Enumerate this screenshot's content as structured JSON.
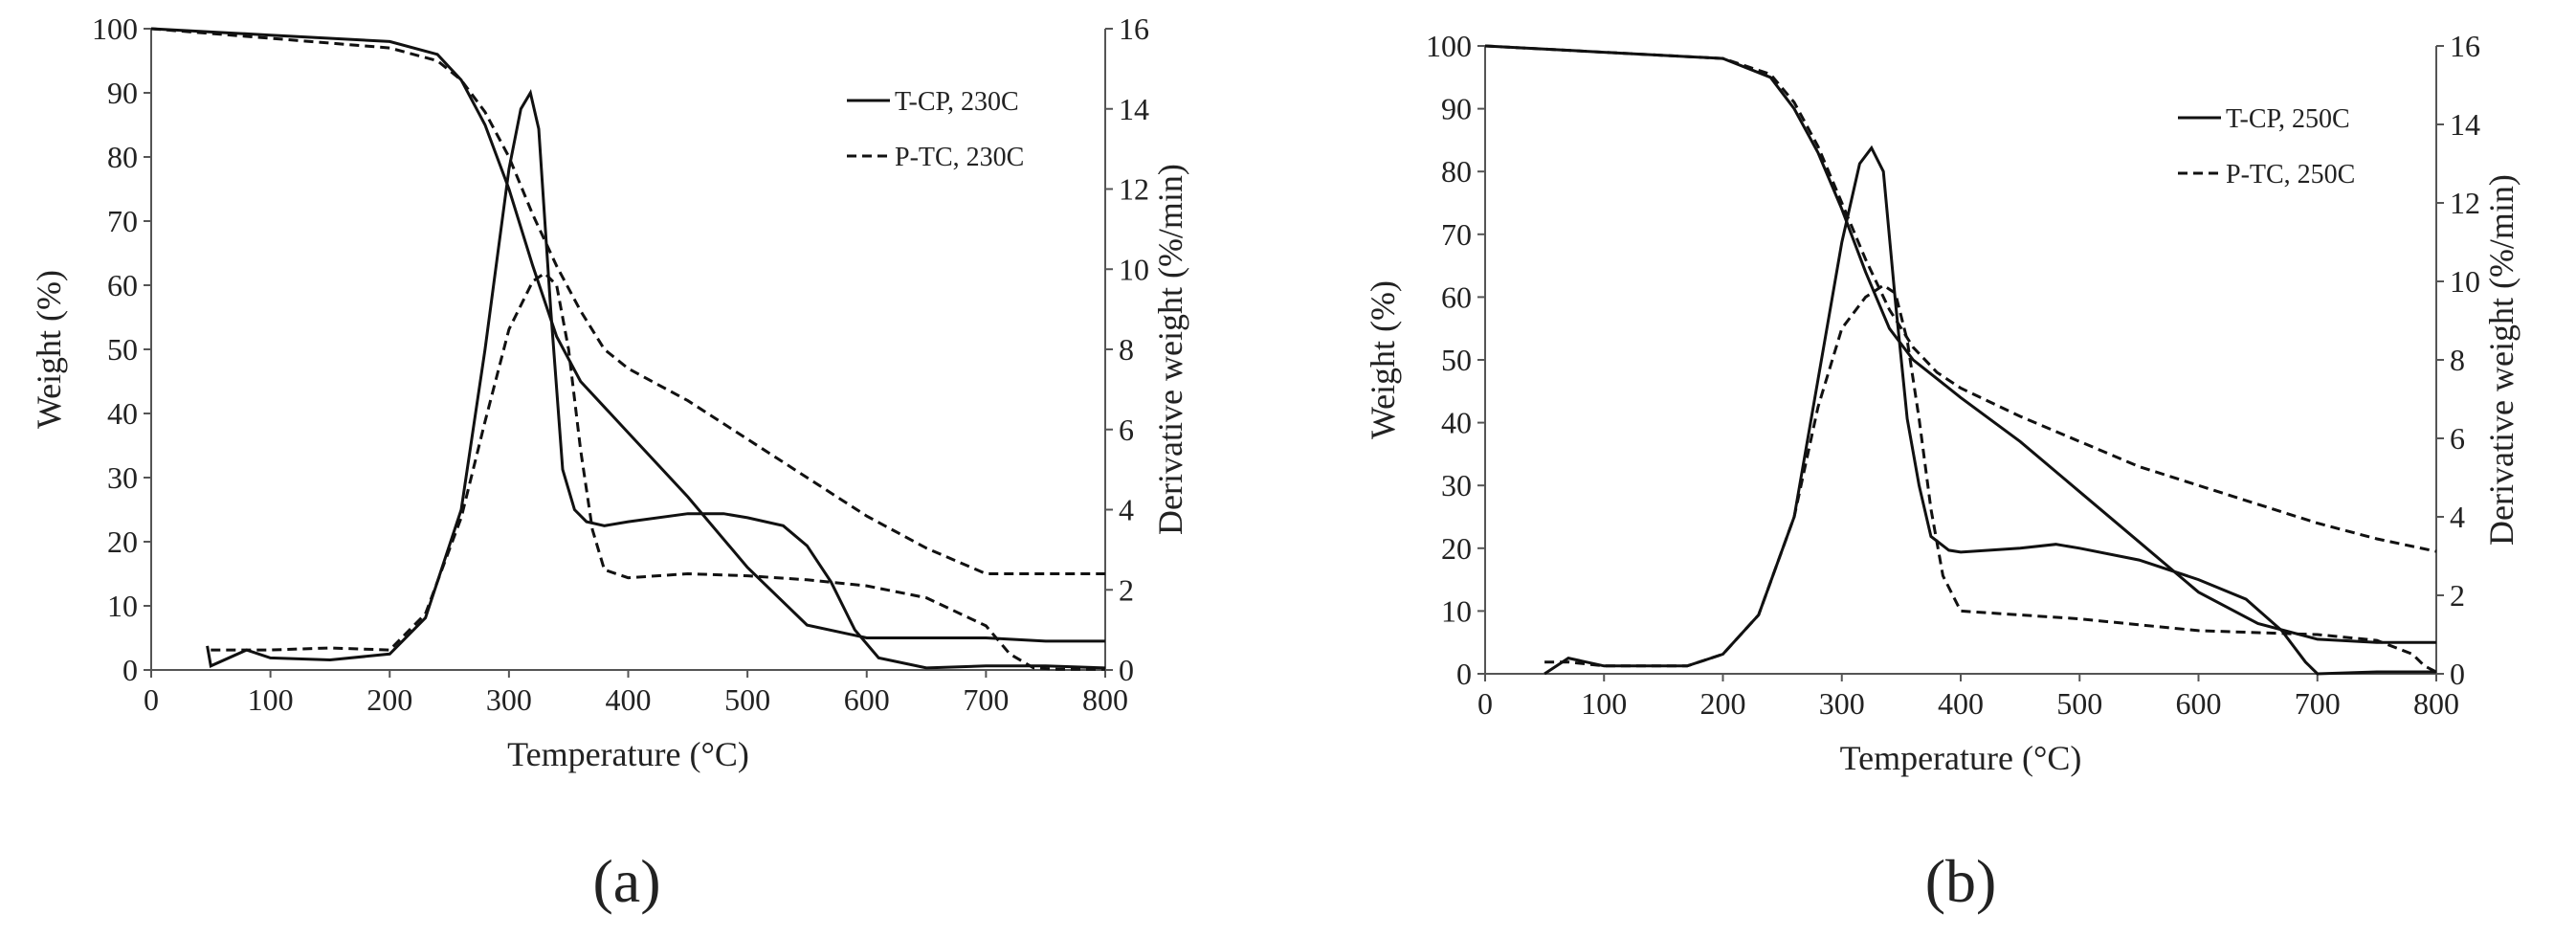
{
  "chart_data": [
    {
      "type": "line",
      "panel_label": "(a)",
      "xlabel": "Temperature (°C)",
      "ylabel": "Weight (%)",
      "y2label": "Derivative weight (%/min)",
      "xlim": [
        0,
        800
      ],
      "ylim": [
        0,
        100
      ],
      "y2lim": [
        0,
        16
      ],
      "xticks": [
        0,
        100,
        200,
        300,
        400,
        500,
        600,
        700,
        800
      ],
      "yticks": [
        0,
        10,
        20,
        30,
        40,
        50,
        60,
        70,
        80,
        90,
        100
      ],
      "y2ticks": [
        0,
        2,
        4,
        6,
        8,
        10,
        12,
        14,
        16
      ],
      "legend_position": "top-right",
      "legend": [
        "T-CP, 230C",
        "P-TC, 230C"
      ],
      "series": [
        {
          "name": "T-CP, 230C",
          "kind": "weight",
          "axis": "left",
          "style": "solid",
          "x": [
            0,
            100,
            200,
            240,
            260,
            280,
            300,
            320,
            340,
            360,
            380,
            400,
            450,
            500,
            550,
            600,
            650,
            700,
            750,
            800
          ],
          "y": [
            100,
            99,
            98,
            96,
            92,
            85,
            75,
            63,
            52,
            45,
            41,
            37,
            27,
            16,
            7,
            5,
            5,
            5,
            4.5,
            4.5
          ]
        },
        {
          "name": "P-TC, 230C",
          "kind": "weight",
          "axis": "left",
          "style": "dashed",
          "x": [
            0,
            100,
            200,
            240,
            260,
            280,
            300,
            320,
            340,
            360,
            380,
            400,
            450,
            500,
            550,
            600,
            650,
            700,
            750,
            800
          ],
          "y": [
            100,
            98.5,
            97,
            95,
            92,
            87,
            80,
            71,
            63,
            56,
            50,
            47,
            42,
            36,
            30,
            24,
            19,
            15,
            15,
            15
          ]
        },
        {
          "name": "T-CP, 230C",
          "kind": "derivative",
          "axis": "right",
          "style": "solid",
          "x": [
            47,
            50,
            80,
            100,
            150,
            200,
            230,
            260,
            280,
            300,
            310,
            318,
            325,
            335,
            345,
            355,
            365,
            380,
            400,
            450,
            480,
            500,
            530,
            550,
            570,
            590,
            610,
            650,
            700,
            750,
            800
          ],
          "y": [
            0.6,
            0.1,
            0.5,
            0.3,
            0.25,
            0.4,
            1.3,
            4,
            8,
            12.5,
            14,
            14.4,
            13.5,
            9,
            5,
            4,
            3.7,
            3.6,
            3.7,
            3.9,
            3.9,
            3.8,
            3.6,
            3.1,
            2.2,
            1.0,
            0.3,
            0.05,
            0.1,
            0.1,
            0.05
          ]
        },
        {
          "name": "P-TC, 230C",
          "kind": "derivative",
          "axis": "right",
          "style": "dashed",
          "x": [
            50,
            100,
            150,
            200,
            230,
            260,
            280,
            300,
            320,
            330,
            340,
            350,
            360,
            370,
            380,
            400,
            450,
            500,
            550,
            600,
            650,
            700,
            720,
            740,
            760,
            800
          ],
          "y": [
            0.5,
            0.5,
            0.55,
            0.5,
            1.4,
            3.8,
            6.2,
            8.5,
            9.7,
            9.9,
            9.6,
            8,
            5.5,
            3.5,
            2.5,
            2.3,
            2.4,
            2.35,
            2.25,
            2.1,
            1.8,
            1.1,
            0.4,
            0.05,
            0.02,
            0.02
          ]
        }
      ]
    },
    {
      "type": "line",
      "panel_label": "(b)",
      "xlabel": "Temperature (°C)",
      "ylabel": "Weight (%)",
      "y2label": "Derivative weight (%/min)",
      "xlim": [
        0,
        800
      ],
      "ylim": [
        0,
        100
      ],
      "y2lim": [
        0,
        16
      ],
      "xticks": [
        0,
        100,
        200,
        300,
        400,
        500,
        600,
        700,
        800
      ],
      "yticks": [
        0,
        10,
        20,
        30,
        40,
        50,
        60,
        70,
        80,
        90,
        100
      ],
      "y2ticks": [
        0,
        2,
        4,
        6,
        8,
        10,
        12,
        14,
        16
      ],
      "legend_position": "top-right",
      "legend": [
        "T-CP, 250C",
        "P-TC, 250C"
      ],
      "series": [
        {
          "name": "T-CP, 250C",
          "kind": "weight",
          "axis": "left",
          "style": "solid",
          "x": [
            0,
            100,
            200,
            240,
            260,
            280,
            300,
            320,
            340,
            360,
            380,
            400,
            450,
            500,
            550,
            600,
            650,
            700,
            750,
            800
          ],
          "y": [
            100,
            99,
            98,
            95,
            90,
            83,
            74,
            64,
            55,
            50,
            47,
            44,
            37,
            29,
            21,
            13,
            8,
            5.5,
            5,
            5
          ]
        },
        {
          "name": "P-TC, 250C",
          "kind": "weight",
          "axis": "left",
          "style": "dashed",
          "x": [
            0,
            100,
            200,
            240,
            260,
            280,
            300,
            320,
            340,
            360,
            380,
            400,
            450,
            500,
            550,
            600,
            650,
            700,
            750,
            800
          ],
          "y": [
            100,
            99,
            98,
            95.5,
            91,
            84,
            75,
            66,
            58,
            52,
            48,
            45.5,
            41,
            37,
            33,
            30,
            27,
            24,
            21.5,
            19.5
          ]
        },
        {
          "name": "T-CP, 250C",
          "kind": "derivative",
          "axis": "right",
          "style": "solid",
          "x": [
            50,
            70,
            100,
            170,
            200,
            230,
            260,
            280,
            300,
            315,
            325,
            335,
            345,
            355,
            365,
            375,
            390,
            400,
            450,
            480,
            500,
            550,
            600,
            640,
            670,
            690,
            700,
            750,
            800
          ],
          "y": [
            0,
            0.4,
            0.2,
            0.2,
            0.5,
            1.5,
            4,
            7.5,
            11,
            13,
            13.4,
            12.8,
            9.5,
            6.5,
            4.8,
            3.5,
            3.15,
            3.1,
            3.2,
            3.3,
            3.2,
            2.9,
            2.4,
            1.9,
            1.1,
            0.3,
            0,
            0.05,
            0.05
          ]
        },
        {
          "name": "P-TC, 250C",
          "kind": "derivative",
          "axis": "right",
          "style": "dashed",
          "x": [
            50,
            70,
            100,
            170,
            200,
            230,
            260,
            280,
            300,
            320,
            335,
            345,
            355,
            365,
            375,
            385,
            400,
            450,
            500,
            550,
            600,
            650,
            700,
            750,
            780,
            790,
            800
          ],
          "y": [
            0.3,
            0.3,
            0.2,
            0.2,
            0.5,
            1.5,
            4,
            6.8,
            8.8,
            9.6,
            9.9,
            9.7,
            8.5,
            6.5,
            4.2,
            2.5,
            1.6,
            1.5,
            1.4,
            1.25,
            1.1,
            1.05,
            1.0,
            0.85,
            0.5,
            0.2,
            0.05
          ]
        }
      ]
    }
  ]
}
